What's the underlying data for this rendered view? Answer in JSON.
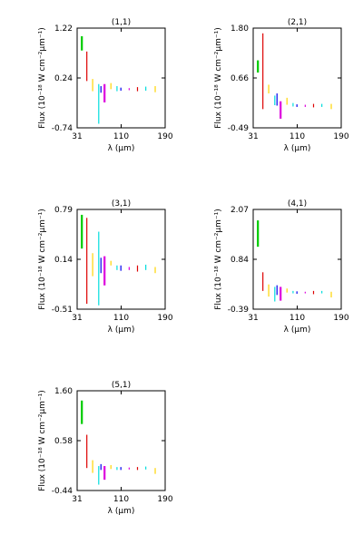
{
  "figure": {
    "xlabel": "λ (μm)",
    "ylabel": "Flux (10⁻¹⁸ W cm⁻²μm⁻¹)"
  },
  "chart_data": [
    {
      "type": "scatter",
      "title": "(1,1)",
      "xlim": [
        31,
        190
      ],
      "ylim": [
        -0.74,
        1.22
      ],
      "xticks": [
        "31",
        "110",
        "190"
      ],
      "yticks": [
        "1.22",
        "0.24",
        "-0.74"
      ],
      "xlabel": "λ (μm)",
      "ylabel": "Flux (10⁻¹⁸ W cm⁻²μm⁻¹)",
      "segments": [
        {
          "x": 39.5,
          "y0": 0.78,
          "y1": 1.06,
          "color": "#00cc00",
          "w": 2
        },
        {
          "x": 48.5,
          "y0": 0.18,
          "y1": 0.76,
          "color": "#dd0000",
          "w": 1
        },
        {
          "x": 59,
          "y0": -0.02,
          "y1": 0.22,
          "color": "#ffd500",
          "w": 1
        },
        {
          "x": 70,
          "y0": -0.66,
          "y1": 0.12,
          "color": "#00dddd",
          "w": 1
        },
        {
          "x": 74,
          "y0": -0.05,
          "y1": 0.08,
          "color": "#0000ee",
          "w": 1
        },
        {
          "x": 80.5,
          "y0": -0.24,
          "y1": 0.12,
          "color": "#dd00dd",
          "w": 2
        },
        {
          "x": 92,
          "y0": 0.02,
          "y1": 0.14,
          "color": "#ffd500",
          "w": 1
        },
        {
          "x": 103,
          "y0": -0.02,
          "y1": 0.08,
          "color": "#00dddd",
          "w": 1
        },
        {
          "x": 110,
          "y0": -0.01,
          "y1": 0.05,
          "color": "#0000ee",
          "w": 1
        },
        {
          "x": 125,
          "y0": 0.0,
          "y1": 0.04,
          "color": "#dd00dd",
          "w": 1
        },
        {
          "x": 140,
          "y0": -0.02,
          "y1": 0.06,
          "color": "#dd0000",
          "w": 1
        },
        {
          "x": 155,
          "y0": -0.01,
          "y1": 0.07,
          "color": "#00dddd",
          "w": 1
        },
        {
          "x": 172,
          "y0": -0.04,
          "y1": 0.08,
          "color": "#ffd500",
          "w": 1
        }
      ]
    },
    {
      "type": "scatter",
      "title": "(2,1)",
      "xlim": [
        31,
        190
      ],
      "ylim": [
        -0.49,
        1.8
      ],
      "xticks": [
        "31",
        "110",
        "190"
      ],
      "yticks": [
        "1.80",
        "0.66",
        "-0.49"
      ],
      "xlabel": "λ (μm)",
      "ylabel": "Flux (10⁻¹⁸ W cm⁻²μm⁻¹)",
      "segments": [
        {
          "x": 39.5,
          "y0": 0.78,
          "y1": 1.06,
          "color": "#00cc00",
          "w": 2
        },
        {
          "x": 48.5,
          "y0": -0.06,
          "y1": 1.68,
          "color": "#dd0000",
          "w": 1
        },
        {
          "x": 59,
          "y0": 0.3,
          "y1": 0.5,
          "color": "#ffd500",
          "w": 1
        },
        {
          "x": 70,
          "y0": 0.03,
          "y1": 0.25,
          "color": "#00dddd",
          "w": 1
        },
        {
          "x": 74,
          "y0": 0.02,
          "y1": 0.3,
          "color": "#0000ee",
          "w": 1
        },
        {
          "x": 80.5,
          "y0": -0.28,
          "y1": 0.12,
          "color": "#dd00dd",
          "w": 2
        },
        {
          "x": 92,
          "y0": 0.04,
          "y1": 0.2,
          "color": "#ffd500",
          "w": 1
        },
        {
          "x": 103,
          "y0": 0.0,
          "y1": 0.08,
          "color": "#00dddd",
          "w": 1
        },
        {
          "x": 110,
          "y0": -0.01,
          "y1": 0.05,
          "color": "#0000ee",
          "w": 1
        },
        {
          "x": 125,
          "y0": -0.01,
          "y1": 0.04,
          "color": "#dd00dd",
          "w": 1
        },
        {
          "x": 140,
          "y0": -0.02,
          "y1": 0.06,
          "color": "#dd0000",
          "w": 1
        },
        {
          "x": 155,
          "y0": -0.01,
          "y1": 0.06,
          "color": "#00dddd",
          "w": 1
        },
        {
          "x": 172,
          "y0": -0.06,
          "y1": 0.06,
          "color": "#ffd500",
          "w": 1
        }
      ]
    },
    {
      "type": "scatter",
      "title": "(3,1)",
      "xlim": [
        31,
        190
      ],
      "ylim": [
        -0.51,
        0.79
      ],
      "xticks": [
        "31",
        "110",
        "190"
      ],
      "yticks": [
        "0.79",
        "0.14",
        "-0.51"
      ],
      "xlabel": "λ (μm)",
      "ylabel": "Flux (10⁻¹⁸ W cm⁻²μm⁻¹)",
      "segments": [
        {
          "x": 39.5,
          "y0": 0.28,
          "y1": 0.72,
          "color": "#00cc00",
          "w": 2
        },
        {
          "x": 48.5,
          "y0": -0.44,
          "y1": 0.68,
          "color": "#dd0000",
          "w": 1
        },
        {
          "x": 59,
          "y0": -0.08,
          "y1": 0.22,
          "color": "#ffd500",
          "w": 1
        },
        {
          "x": 70,
          "y0": -0.46,
          "y1": 0.5,
          "color": "#00dddd",
          "w": 1
        },
        {
          "x": 74,
          "y0": -0.04,
          "y1": 0.16,
          "color": "#0000ee",
          "w": 1
        },
        {
          "x": 80.5,
          "y0": -0.2,
          "y1": 0.18,
          "color": "#dd00dd",
          "w": 2
        },
        {
          "x": 92,
          "y0": 0.06,
          "y1": 0.12,
          "color": "#ffd500",
          "w": 1
        },
        {
          "x": 103,
          "y0": 0.0,
          "y1": 0.06,
          "color": "#00dddd",
          "w": 1
        },
        {
          "x": 110,
          "y0": -0.01,
          "y1": 0.06,
          "color": "#0000ee",
          "w": 1
        },
        {
          "x": 125,
          "y0": 0.0,
          "y1": 0.04,
          "color": "#dd00dd",
          "w": 1
        },
        {
          "x": 140,
          "y0": -0.02,
          "y1": 0.06,
          "color": "#dd0000",
          "w": 1
        },
        {
          "x": 155,
          "y0": 0.0,
          "y1": 0.07,
          "color": "#00dddd",
          "w": 1
        },
        {
          "x": 172,
          "y0": -0.04,
          "y1": 0.04,
          "color": "#ffd500",
          "w": 1
        }
      ]
    },
    {
      "type": "scatter",
      "title": "(4,1)",
      "xlim": [
        31,
        190
      ],
      "ylim": [
        -0.39,
        2.07
      ],
      "xticks": [
        "31",
        "110",
        "190"
      ],
      "yticks": [
        "2.07",
        "0.84",
        "-0.39"
      ],
      "xlabel": "λ (μm)",
      "ylabel": "Flux (10⁻¹⁸ W cm⁻²μm⁻¹)",
      "segments": [
        {
          "x": 39.5,
          "y0": 1.15,
          "y1": 1.8,
          "color": "#00cc00",
          "w": 2
        },
        {
          "x": 48.5,
          "y0": 0.06,
          "y1": 0.52,
          "color": "#dd0000",
          "w": 1
        },
        {
          "x": 59,
          "y0": -0.08,
          "y1": 0.22,
          "color": "#ffd500",
          "w": 1
        },
        {
          "x": 70,
          "y0": -0.2,
          "y1": 0.16,
          "color": "#00dddd",
          "w": 1
        },
        {
          "x": 74,
          "y0": -0.04,
          "y1": 0.2,
          "color": "#0000ee",
          "w": 1
        },
        {
          "x": 80.5,
          "y0": -0.18,
          "y1": 0.16,
          "color": "#dd00dd",
          "w": 2
        },
        {
          "x": 92,
          "y0": 0.02,
          "y1": 0.12,
          "color": "#ffd500",
          "w": 1
        },
        {
          "x": 103,
          "y0": 0.0,
          "y1": 0.06,
          "color": "#00dddd",
          "w": 1
        },
        {
          "x": 110,
          "y0": -0.01,
          "y1": 0.05,
          "color": "#0000ee",
          "w": 1
        },
        {
          "x": 125,
          "y0": 0.0,
          "y1": 0.04,
          "color": "#dd00dd",
          "w": 1
        },
        {
          "x": 140,
          "y0": -0.02,
          "y1": 0.06,
          "color": "#dd0000",
          "w": 1
        },
        {
          "x": 155,
          "y0": 0.0,
          "y1": 0.06,
          "color": "#00dddd",
          "w": 1
        },
        {
          "x": 172,
          "y0": -0.1,
          "y1": 0.04,
          "color": "#ffd500",
          "w": 1
        }
      ]
    },
    {
      "type": "scatter",
      "title": "(5,1)",
      "xlim": [
        31,
        190
      ],
      "ylim": [
        -0.44,
        1.6
      ],
      "xticks": [
        "31",
        "110",
        "190"
      ],
      "yticks": [
        "1.60",
        "0.58",
        "-0.44"
      ],
      "xlabel": "λ (μm)",
      "ylabel": "Flux (10⁻¹⁸ W cm⁻²μm⁻¹)",
      "segments": [
        {
          "x": 39.5,
          "y0": 0.92,
          "y1": 1.4,
          "color": "#00cc00",
          "w": 2
        },
        {
          "x": 48.5,
          "y0": 0.02,
          "y1": 0.7,
          "color": "#dd0000",
          "w": 1
        },
        {
          "x": 59,
          "y0": -0.08,
          "y1": 0.18,
          "color": "#ffd500",
          "w": 1
        },
        {
          "x": 70,
          "y0": -0.32,
          "y1": 0.06,
          "color": "#00dddd",
          "w": 1
        },
        {
          "x": 74,
          "y0": -0.02,
          "y1": 0.1,
          "color": "#0000ee",
          "w": 1
        },
        {
          "x": 80.5,
          "y0": -0.22,
          "y1": 0.06,
          "color": "#dd00dd",
          "w": 2
        },
        {
          "x": 92,
          "y0": 0.0,
          "y1": 0.08,
          "color": "#ffd500",
          "w": 1
        },
        {
          "x": 103,
          "y0": -0.02,
          "y1": 0.04,
          "color": "#00dddd",
          "w": 1
        },
        {
          "x": 110,
          "y0": -0.02,
          "y1": 0.04,
          "color": "#0000ee",
          "w": 1
        },
        {
          "x": 125,
          "y0": -0.01,
          "y1": 0.03,
          "color": "#dd00dd",
          "w": 1
        },
        {
          "x": 140,
          "y0": -0.02,
          "y1": 0.04,
          "color": "#dd0000",
          "w": 1
        },
        {
          "x": 155,
          "y0": -0.01,
          "y1": 0.05,
          "color": "#00dddd",
          "w": 1
        },
        {
          "x": 172,
          "y0": -0.1,
          "y1": 0.02,
          "color": "#ffd500",
          "w": 1
        }
      ]
    }
  ]
}
